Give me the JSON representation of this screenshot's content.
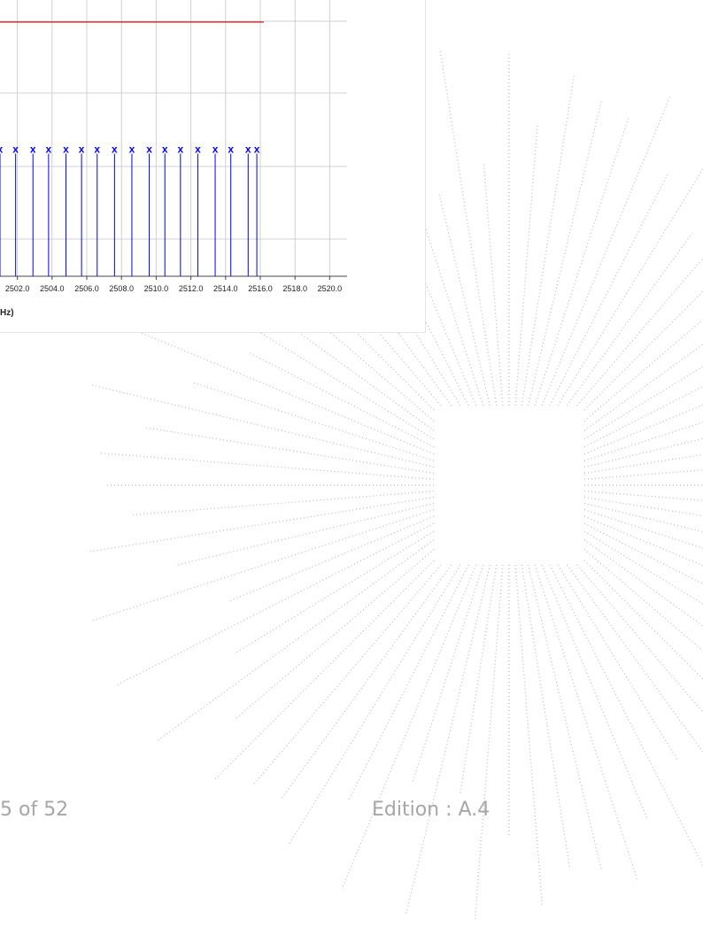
{
  "chart_data": {
    "type": "stem",
    "x_label": "Hz)",
    "marker": "x",
    "x": [
      2501.0,
      2501.9,
      2502.9,
      2503.8,
      2504.8,
      2505.7,
      2506.6,
      2507.6,
      2508.6,
      2509.6,
      2510.5,
      2511.4,
      2512.4,
      2513.4,
      2514.3,
      2515.3,
      2515.8
    ],
    "values": [
      46,
      46,
      46,
      46,
      46,
      46,
      46,
      46,
      46,
      46,
      46,
      46,
      46,
      46,
      46,
      46,
      46
    ],
    "color": "#0000ff",
    "limit_line": {
      "value": 92,
      "x_end": 2516.2,
      "color": "#c00000"
    },
    "xlim": [
      2501.0,
      2521.0
    ],
    "ylim": [
      0,
      100
    ],
    "xticks": [
      {
        "value": 2502,
        "label": "2502.0"
      },
      {
        "value": 2504,
        "label": "2504.0"
      },
      {
        "value": 2506,
        "label": "2506.0"
      },
      {
        "value": 2508,
        "label": "2508.0"
      },
      {
        "value": 2510,
        "label": "2510.0"
      },
      {
        "value": 2512,
        "label": "2512.0"
      },
      {
        "value": 2514,
        "label": "2514.0"
      },
      {
        "value": 2516,
        "label": "2516.0"
      },
      {
        "value": 2518,
        "label": "2518.0"
      },
      {
        "value": 2520,
        "label": "2520.0"
      }
    ],
    "grid": true
  },
  "footer": {
    "page": "5 of 52",
    "edition": "Edition : A.4"
  }
}
